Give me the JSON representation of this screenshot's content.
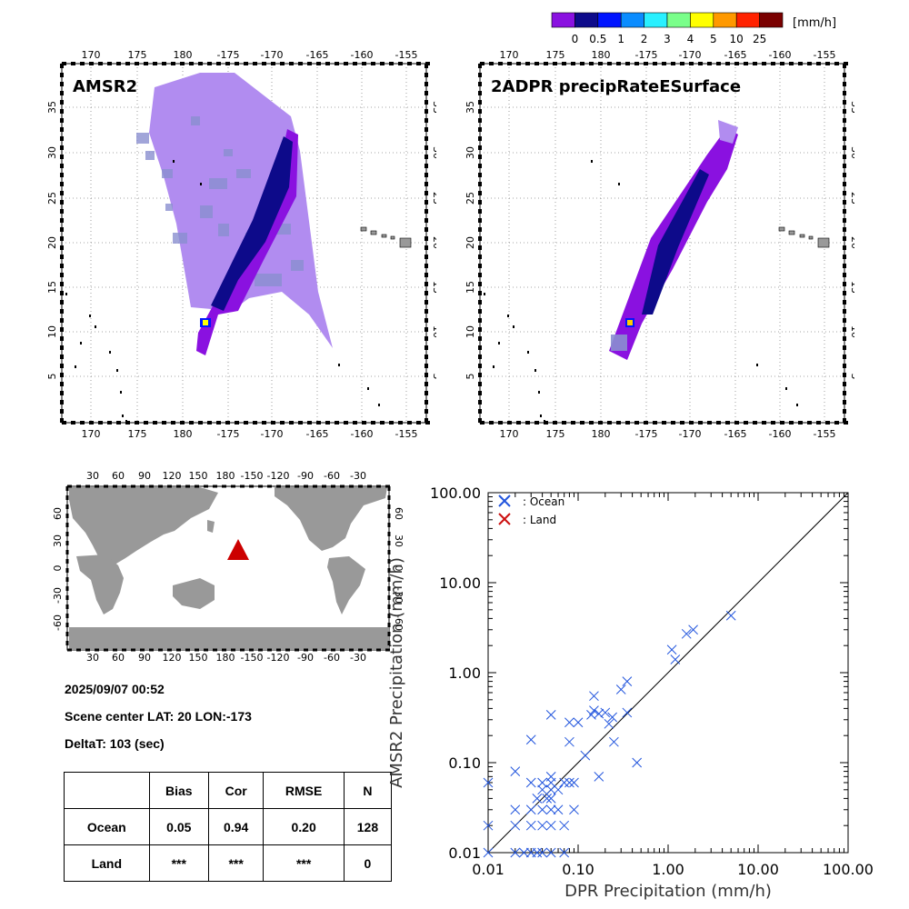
{
  "colorbar": {
    "unit": "[mm/h]",
    "colors": [
      "#8a11e0",
      "#0d0a8a",
      "#0014ff",
      "#0a8cff",
      "#29f0ff",
      "#7aff8a",
      "#ffff00",
      "#ff9900",
      "#ff2200",
      "#7a0000"
    ],
    "labels": [
      "0",
      "0.5",
      "1",
      "2",
      "3",
      "4",
      "5",
      "10",
      "25"
    ]
  },
  "map_lon_ticks": [
    "170",
    "175",
    "180",
    "-175",
    "-170",
    "-165",
    "-160",
    "-155"
  ],
  "map_lat_ticks": [
    "5",
    "10",
    "15",
    "20",
    "25",
    "30",
    "35"
  ],
  "panels": [
    {
      "title": "AMSR2"
    },
    {
      "title": "2ADPR precipRateESurface"
    }
  ],
  "world_map": {
    "lon_ticks": [
      "30",
      "60",
      "90",
      "120",
      "150",
      "180",
      "-150",
      "-120",
      "-90",
      "-60",
      "-30"
    ],
    "lat_ticks_left": [
      "60",
      "30",
      "0",
      "-30",
      "-60"
    ],
    "lat_ticks_right": [
      "60",
      "30",
      "0",
      "-30",
      "-60"
    ]
  },
  "info": {
    "datetime": "2025/09/07 00:52",
    "scene_center": "Scene center LAT: 20   LON:-173",
    "deltat": "DeltaT:  103 (sec)"
  },
  "stats_table": {
    "headers": [
      "",
      "Bias",
      "Cor",
      "RMSE",
      "N"
    ],
    "rows": [
      {
        "label": "Ocean",
        "bias": "0.05",
        "cor": "0.94",
        "rmse": "0.20",
        "n": "128"
      },
      {
        "label": "Land",
        "bias": "***",
        "cor": "***",
        "rmse": "***",
        "n": "0"
      }
    ]
  },
  "chart_data": {
    "type": "scatter",
    "xlabel": "DPR Precipitation (mm/h)",
    "ylabel": "AMSR2 Precipitation (mm/h)",
    "scale": "log",
    "xlim": [
      0.01,
      100
    ],
    "ylim": [
      0.01,
      100
    ],
    "ticks": [
      "0.01",
      "0.10",
      "1.00",
      "10.00",
      "100.00"
    ],
    "tick_values": [
      0.01,
      0.1,
      1,
      10,
      100
    ],
    "reference_line": "1:1",
    "legend": "top-left",
    "series": [
      {
        "name": ": Ocean",
        "color": "#2255dd",
        "points": [
          [
            0.01,
            0.01
          ],
          [
            0.01,
            0.02
          ],
          [
            0.01,
            0.06
          ],
          [
            0.02,
            0.01
          ],
          [
            0.02,
            0.03
          ],
          [
            0.02,
            0.02
          ],
          [
            0.02,
            0.08
          ],
          [
            0.025,
            0.01
          ],
          [
            0.03,
            0.01
          ],
          [
            0.03,
            0.02
          ],
          [
            0.03,
            0.03
          ],
          [
            0.03,
            0.06
          ],
          [
            0.03,
            0.18
          ],
          [
            0.035,
            0.04
          ],
          [
            0.035,
            0.01
          ],
          [
            0.04,
            0.01
          ],
          [
            0.04,
            0.02
          ],
          [
            0.04,
            0.03
          ],
          [
            0.04,
            0.05
          ],
          [
            0.04,
            0.06
          ],
          [
            0.045,
            0.04
          ],
          [
            0.05,
            0.01
          ],
          [
            0.05,
            0.02
          ],
          [
            0.05,
            0.03
          ],
          [
            0.05,
            0.04
          ],
          [
            0.05,
            0.05
          ],
          [
            0.05,
            0.06
          ],
          [
            0.05,
            0.07
          ],
          [
            0.05,
            0.34
          ],
          [
            0.06,
            0.03
          ],
          [
            0.06,
            0.05
          ],
          [
            0.07,
            0.02
          ],
          [
            0.07,
            0.06
          ],
          [
            0.07,
            0.01
          ],
          [
            0.08,
            0.06
          ],
          [
            0.08,
            0.17
          ],
          [
            0.08,
            0.28
          ],
          [
            0.09,
            0.06
          ],
          [
            0.09,
            0.03
          ],
          [
            0.1,
            0.28
          ],
          [
            0.12,
            0.12
          ],
          [
            0.14,
            0.34
          ],
          [
            0.15,
            0.55
          ],
          [
            0.15,
            0.38
          ],
          [
            0.17,
            0.35
          ],
          [
            0.17,
            0.07
          ],
          [
            0.2,
            0.36
          ],
          [
            0.22,
            0.27
          ],
          [
            0.24,
            0.32
          ],
          [
            0.25,
            0.17
          ],
          [
            0.3,
            0.65
          ],
          [
            0.35,
            0.8
          ],
          [
            0.35,
            0.36
          ],
          [
            0.45,
            0.1
          ],
          [
            1.1,
            1.8
          ],
          [
            1.2,
            1.4
          ],
          [
            1.6,
            2.7
          ],
          [
            1.9,
            3.0
          ],
          [
            5.0,
            4.3
          ]
        ]
      },
      {
        "name": ": Land",
        "color": "#cc1111",
        "points": []
      }
    ]
  }
}
